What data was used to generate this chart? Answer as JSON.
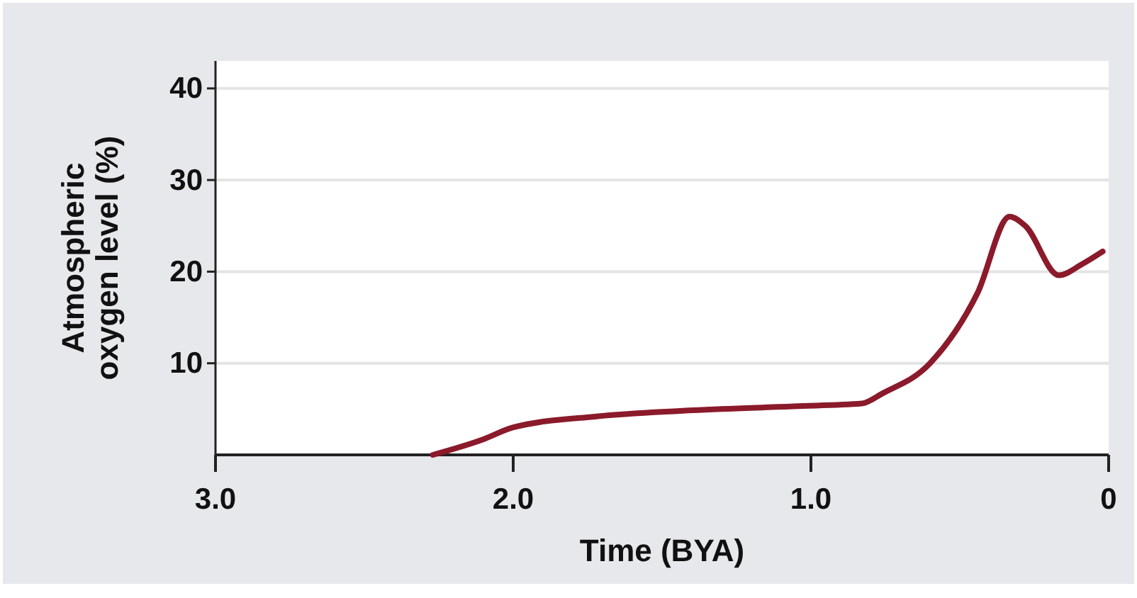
{
  "chart_data": {
    "type": "line",
    "xlabel": "Time (BYA)",
    "ylabel": "Atmospheric oxygen level (%)",
    "xlim": [
      3,
      0
    ],
    "xticks": [
      {
        "value": 3,
        "label": "3.0"
      },
      {
        "value": 2,
        "label": "2.0"
      },
      {
        "value": 1,
        "label": "1.0"
      },
      0
    ],
    "ylim": [
      0,
      43
    ],
    "yticks": [
      10,
      20,
      30,
      40
    ],
    "grid": "y",
    "series": [
      {
        "color": "#8b1a2b",
        "x": [
          2.27,
          2.1,
          2.0,
          1.72,
          1.44,
          1.06,
          0.83,
          0.76,
          0.6,
          0.44,
          0.333,
          0.28,
          0.167,
          0.09,
          0.02
        ],
        "values": [
          0,
          1.7,
          3.0,
          4.2,
          4.8,
          5.3,
          5.6,
          6.7,
          10,
          17.7,
          26,
          25,
          19.6,
          20.8,
          22.2
        ]
      }
    ]
  }
}
